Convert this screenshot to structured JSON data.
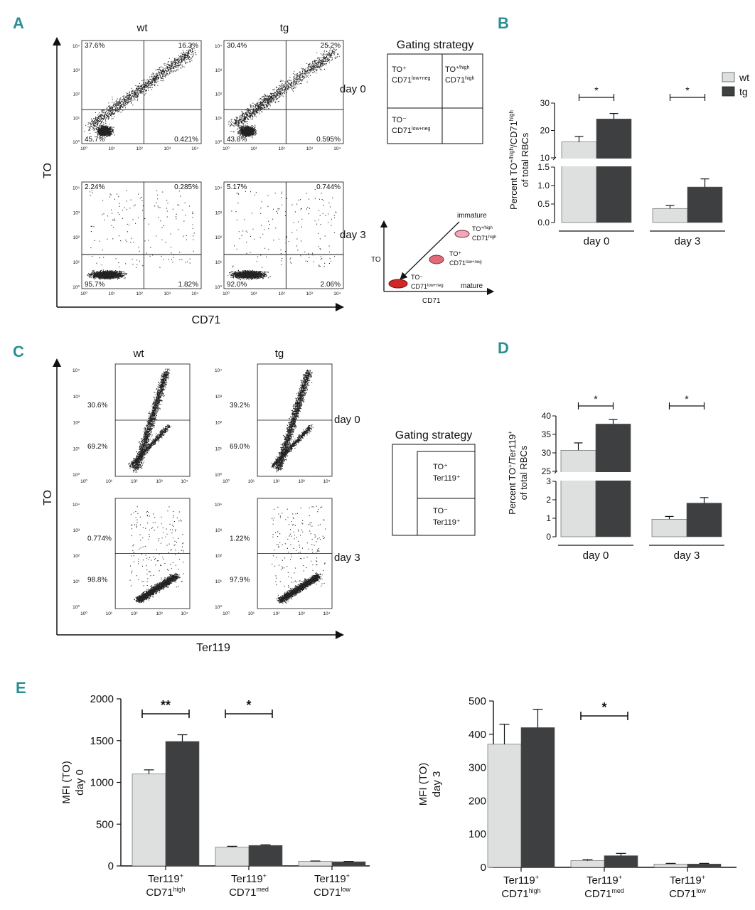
{
  "panel_letters": [
    "A",
    "B",
    "C",
    "D",
    "E"
  ],
  "flow_A": {
    "genotypes": [
      "wt",
      "tg"
    ],
    "days": [
      "day 0",
      "day 3"
    ],
    "y_axis": "TO",
    "x_axis": "CD71",
    "tick_labels": [
      "10⁰",
      "10¹",
      "10²",
      "10³",
      "10⁴"
    ],
    "quadrants": [
      {
        "day": "day 0",
        "genotype": "wt",
        "UL": "37.6%",
        "UR": "16.3%",
        "LL": "45.7%",
        "LR": "0.421%"
      },
      {
        "day": "day 0",
        "genotype": "tg",
        "UL": "30.4%",
        "UR": "25.2%",
        "LL": "43.8%",
        "LR": "0.595%"
      },
      {
        "day": "day 3",
        "genotype": "wt",
        "UL": "2.24%",
        "UR": "0.285%",
        "LL": "95.7%",
        "LR": "1.82%"
      },
      {
        "day": "day 3",
        "genotype": "tg",
        "UL": "5.17%",
        "UR": "0.744%",
        "LL": "92.0%",
        "LR": "2.06%"
      }
    ],
    "gating": {
      "title": "Gating strategy",
      "ul_1": "TO⁺",
      "ul_2": "CD71",
      "ul_2_sup": "low+neg",
      "ur_1": "TO",
      "ur_1_sup": "+/high",
      "ur_2": "CD71",
      "ur_2_sup": "high",
      "ll_1": "TO⁻",
      "ll_2": "CD71",
      "ll_2_sup": "low+neg"
    },
    "maturation": {
      "y_axis": "TO",
      "x_axis": "CD71",
      "immature": "immature",
      "mature": "mature",
      "c1_a": "TO",
      "c1_a_sup": "+/high",
      "c1_b": "CD71",
      "c1_b_sup": "high",
      "c2_a": "TO⁺",
      "c2_b": "CD71",
      "c2_b_sup": "low+neg",
      "c3_a": "TO⁻",
      "c3_b": "CD71",
      "c3_b_sup": "low+neg"
    }
  },
  "flow_C": {
    "genotypes": [
      "wt",
      "tg"
    ],
    "days": [
      "day 0",
      "day 3"
    ],
    "y_axis": "TO",
    "x_axis": "Ter119",
    "quadrants": [
      {
        "day": "day 0",
        "genotype": "wt",
        "upper": "30.6%",
        "lower": "69.2%"
      },
      {
        "day": "day 0",
        "genotype": "tg",
        "upper": "39.2%",
        "lower": "69.0%"
      },
      {
        "day": "day 3",
        "genotype": "wt",
        "upper": "0.774%",
        "lower": "98.8%"
      },
      {
        "day": "day 3",
        "genotype": "tg",
        "upper": "1.22%",
        "lower": "97.9%"
      }
    ],
    "gating": {
      "title": "Gating strategy",
      "u_1": "TO⁺",
      "u_2": "Ter119⁺",
      "l_1": "TO⁻",
      "l_2": "Ter119⁺"
    }
  },
  "chart_data": [
    {
      "panel": "B",
      "type": "bar",
      "categories": [
        "day 0",
        "day 3"
      ],
      "series": [
        {
          "name": "wt",
          "color": "#dde0df",
          "values": [
            15.8,
            0.38
          ],
          "errors": [
            2.0,
            0.08
          ]
        },
        {
          "name": "tg",
          "color": "#3d3f40",
          "values": [
            24.2,
            0.96
          ],
          "errors": [
            2.0,
            0.22
          ]
        }
      ],
      "ylabel_parts": [
        "Percent TO",
        "+/high",
        "/CD71",
        "high"
      ],
      "ylabel_2": "of total RBCs",
      "broken_axis": {
        "lower": [
          0,
          1.5
        ],
        "upper": [
          10,
          30
        ]
      },
      "ticks_lower": [
        "0.0",
        "0.5",
        "1.0",
        "1.5"
      ],
      "ticks_upper": [
        "10",
        "20",
        "30"
      ],
      "significance": [
        "*",
        "*"
      ]
    },
    {
      "panel": "D",
      "type": "bar",
      "categories": [
        "day 0",
        "day 3"
      ],
      "series": [
        {
          "name": "wt",
          "color": "#dde0df",
          "values": [
            30.7,
            0.95
          ],
          "errors": [
            2.0,
            0.15
          ]
        },
        {
          "name": "tg",
          "color": "#3d3f40",
          "values": [
            37.8,
            1.82
          ],
          "errors": [
            1.2,
            0.3
          ]
        }
      ],
      "ylabel_parts": [
        "Percent TO",
        "+",
        "/Ter119",
        "+"
      ],
      "ylabel_2": "of total RBCs",
      "broken_axis": {
        "lower": [
          0,
          3
        ],
        "upper": [
          25,
          40
        ]
      },
      "ticks_lower": [
        "0",
        "1",
        "2",
        "3"
      ],
      "ticks_upper": [
        "25",
        "30",
        "35",
        "40"
      ],
      "significance": [
        "*",
        "*"
      ]
    },
    {
      "panel": "E",
      "type": "bar",
      "ylabel_1": "MFI (TO)",
      "ylabel_2": "day 0",
      "ylim": [
        0,
        2000
      ],
      "ticks": [
        "0",
        "500",
        "1000",
        "1500",
        "2000"
      ],
      "categories": [
        {
          "a": "Ter119",
          "a_sup": "+",
          "b": "CD71",
          "b_sup": "high"
        },
        {
          "a": "Ter119",
          "a_sup": "+",
          "b": "CD71",
          "b_sup": "med"
        },
        {
          "a": "Ter119",
          "a_sup": "+",
          "b": "CD71",
          "b_sup": "low"
        }
      ],
      "series": [
        {
          "name": "wt",
          "color": "#dde0df",
          "values": [
            1100,
            225,
            55
          ],
          "errors": [
            50,
            10,
            4
          ]
        },
        {
          "name": "tg",
          "color": "#3d3f40",
          "values": [
            1490,
            245,
            50
          ],
          "errors": [
            80,
            8,
            4
          ]
        }
      ],
      "significance": [
        "**",
        "*",
        ""
      ]
    },
    {
      "panel": "E",
      "type": "bar",
      "ylabel_1": "MFI (TO)",
      "ylabel_2": "day 3",
      "ylim": [
        0,
        500
      ],
      "ticks": [
        "0",
        "100",
        "200",
        "300",
        "400",
        "500"
      ],
      "categories": [
        {
          "a": "Ter119",
          "a_sup": "+",
          "b": "CD71",
          "b_sup": "high"
        },
        {
          "a": "Ter119",
          "a_sup": "+",
          "b": "CD71",
          "b_sup": "med"
        },
        {
          "a": "Ter119",
          "a_sup": "+",
          "b": "CD71",
          "b_sup": "low"
        }
      ],
      "series": [
        {
          "name": "wt",
          "color": "#dde0df",
          "values": [
            370,
            20,
            10
          ],
          "errors": [
            60,
            3,
            2
          ]
        },
        {
          "name": "tg",
          "color": "#3d3f40",
          "values": [
            420,
            35,
            10
          ],
          "errors": [
            55,
            7,
            2
          ]
        }
      ],
      "significance": [
        "",
        "*",
        ""
      ]
    }
  ],
  "legend": [
    "wt",
    "tg"
  ]
}
